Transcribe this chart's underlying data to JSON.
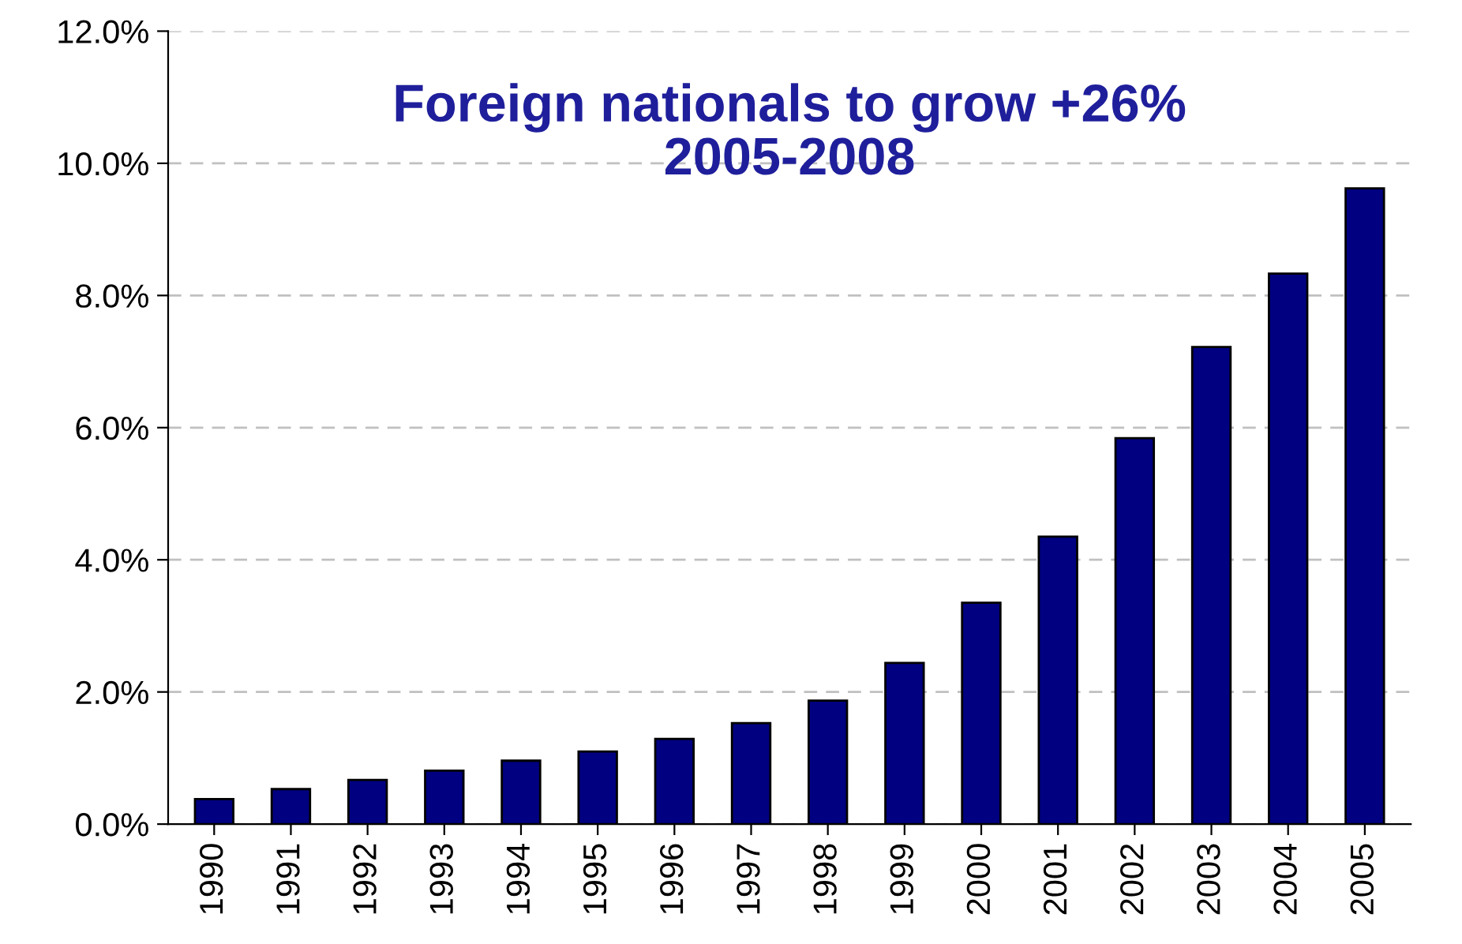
{
  "chart_data": {
    "type": "bar",
    "title": "Foreign nationals to grow +26%\n2005-2008",
    "categories": [
      "1990",
      "1991",
      "1992",
      "1993",
      "1994",
      "1995",
      "1996",
      "1997",
      "1998",
      "1999",
      "2000",
      "2001",
      "2002",
      "2003",
      "2004",
      "2005"
    ],
    "values": [
      0.38,
      0.53,
      0.67,
      0.81,
      0.96,
      1.1,
      1.29,
      1.53,
      1.87,
      2.44,
      3.35,
      4.35,
      5.84,
      7.22,
      8.33,
      9.62
    ],
    "color": "#000080",
    "ylim": [
      0,
      12
    ],
    "yticks": [
      {
        "value": 0,
        "label": "0.0%"
      },
      {
        "value": 2,
        "label": "2.0%"
      },
      {
        "value": 4,
        "label": "4.0%"
      },
      {
        "value": 6,
        "label": "6.0%"
      },
      {
        "value": 8,
        "label": "8.0%"
      },
      {
        "value": 10,
        "label": "10.0%"
      },
      {
        "value": 12,
        "label": "12.0%"
      }
    ],
    "grid": "y",
    "legend": false
  }
}
